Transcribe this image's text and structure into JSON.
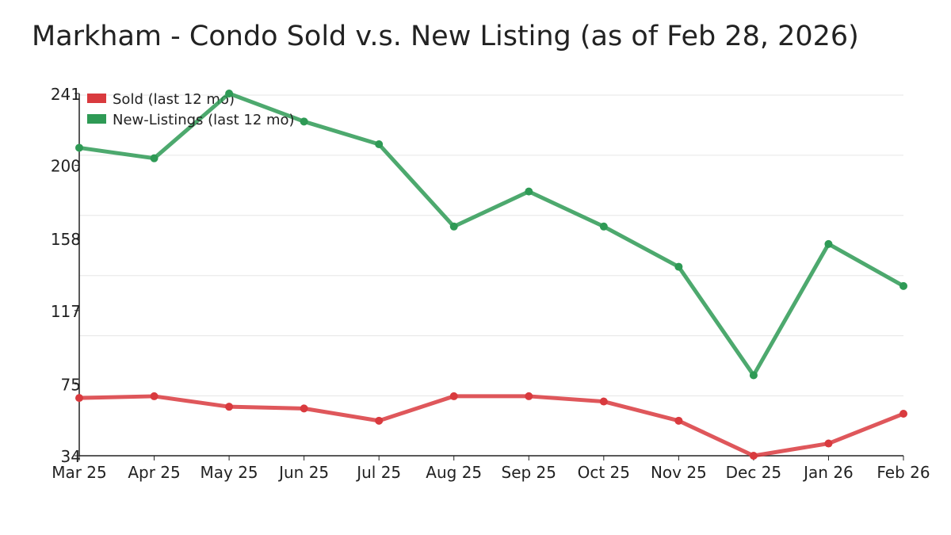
{
  "chart_data": {
    "type": "line",
    "title": "Markham - Condo Sold v.s. New Listing (as of Feb 28, 2026)",
    "xlabel": "",
    "ylabel": "",
    "categories": [
      "Mar 25",
      "Apr 25",
      "May 25",
      "Jun 25",
      "Jul 25",
      "Aug 25",
      "Sep 25",
      "Oct 25",
      "Nov 25",
      "Dec 25",
      "Jan 26",
      "Feb 26"
    ],
    "ylim": [
      34,
      241
    ],
    "yticks": [
      "241",
      "200",
      "158",
      "117",
      "75",
      "34"
    ],
    "ytick_values": [
      241,
      200,
      158,
      117,
      75,
      34
    ],
    "grid": true,
    "legend_position": "top-left",
    "series": [
      {
        "name": "Sold (last 12 mo)",
        "color": "#d93a3e",
        "values": [
          67,
          68,
          62,
          61,
          54,
          68,
          68,
          65,
          54,
          34,
          41,
          58
        ]
      },
      {
        "name": "New-Listings (last 12 mo)",
        "color": "#2e9a55",
        "values": [
          210,
          204,
          241,
          225,
          212,
          165,
          185,
          165,
          142,
          80,
          155,
          131
        ]
      }
    ]
  }
}
